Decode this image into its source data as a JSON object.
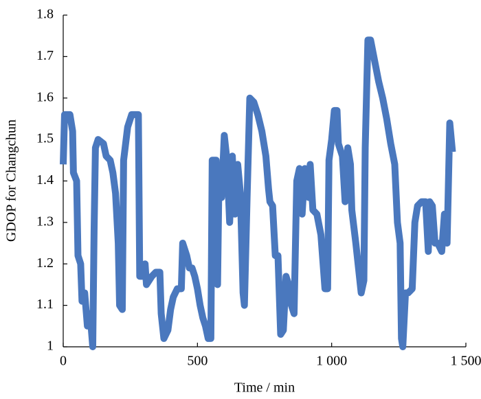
{
  "chart_data": {
    "type": "line",
    "xlabel": "Time / min",
    "ylabel": "GDOP for Changchun",
    "x": [
      0,
      5,
      25,
      35,
      38,
      50,
      55,
      65,
      70,
      80,
      90,
      100,
      110,
      115,
      120,
      130,
      150,
      160,
      175,
      185,
      195,
      205,
      210,
      220,
      225,
      240,
      255,
      280,
      285,
      295,
      305,
      310,
      320,
      330,
      345,
      360,
      365,
      375,
      390,
      400,
      410,
      425,
      440,
      445,
      460,
      470,
      480,
      490,
      500,
      510,
      520,
      530,
      540,
      550,
      555,
      570,
      575,
      580,
      590,
      600,
      610,
      620,
      630,
      640,
      650,
      660,
      670,
      675,
      685,
      695,
      710,
      725,
      740,
      755,
      765,
      770,
      780,
      790,
      800,
      810,
      820,
      830,
      840,
      850,
      860,
      870,
      880,
      890,
      900,
      915,
      920,
      930,
      945,
      960,
      975,
      985,
      990,
      1000,
      1010,
      1020,
      1025,
      1040,
      1050,
      1060,
      1070,
      1075,
      1090,
      1100,
      1110,
      1120,
      1125,
      1135,
      1145,
      1160,
      1175,
      1190,
      1205,
      1220,
      1235,
      1245,
      1255,
      1260,
      1265,
      1275,
      1285,
      1300,
      1310,
      1320,
      1335,
      1350,
      1360,
      1365,
      1375,
      1385,
      1395,
      1410,
      1420,
      1430,
      1440,
      1450
    ],
    "values": [
      1.44,
      1.56,
      1.56,
      1.52,
      1.42,
      1.4,
      1.22,
      1.2,
      1.11,
      1.13,
      1.05,
      1.08,
      1.0,
      1.28,
      1.48,
      1.5,
      1.49,
      1.46,
      1.45,
      1.42,
      1.37,
      1.25,
      1.1,
      1.09,
      1.45,
      1.53,
      1.56,
      1.56,
      1.17,
      1.17,
      1.2,
      1.15,
      1.16,
      1.17,
      1.18,
      1.18,
      1.08,
      1.02,
      1.04,
      1.09,
      1.12,
      1.14,
      1.14,
      1.25,
      1.22,
      1.19,
      1.19,
      1.17,
      1.14,
      1.1,
      1.07,
      1.05,
      1.02,
      1.02,
      1.45,
      1.45,
      1.15,
      1.4,
      1.36,
      1.51,
      1.45,
      1.3,
      1.46,
      1.32,
      1.44,
      1.37,
      1.13,
      1.1,
      1.36,
      1.6,
      1.59,
      1.56,
      1.52,
      1.46,
      1.38,
      1.35,
      1.34,
      1.22,
      1.22,
      1.03,
      1.04,
      1.17,
      1.15,
      1.1,
      1.08,
      1.4,
      1.43,
      1.32,
      1.43,
      1.36,
      1.44,
      1.33,
      1.32,
      1.27,
      1.14,
      1.14,
      1.45,
      1.5,
      1.57,
      1.57,
      1.49,
      1.46,
      1.35,
      1.48,
      1.44,
      1.33,
      1.25,
      1.19,
      1.13,
      1.16,
      1.48,
      1.74,
      1.74,
      1.69,
      1.64,
      1.6,
      1.55,
      1.49,
      1.44,
      1.3,
      1.25,
      1.02,
      1.0,
      1.13,
      1.13,
      1.14,
      1.3,
      1.34,
      1.35,
      1.35,
      1.23,
      1.35,
      1.34,
      1.25,
      1.25,
      1.23,
      1.32,
      1.25,
      1.54,
      1.47
    ],
    "color": "#4a78be",
    "xlim": [
      0,
      1500
    ],
    "xticks": [
      0,
      500,
      {
        "value": 1000,
        "label": "1 000"
      },
      {
        "value": 1500,
        "label": "1 500"
      }
    ],
    "ylim": [
      1,
      1.8
    ],
    "yticks": [
      1,
      1.1,
      1.2,
      1.3,
      1.4,
      1.5,
      1.6,
      1.7,
      1.8
    ]
  }
}
